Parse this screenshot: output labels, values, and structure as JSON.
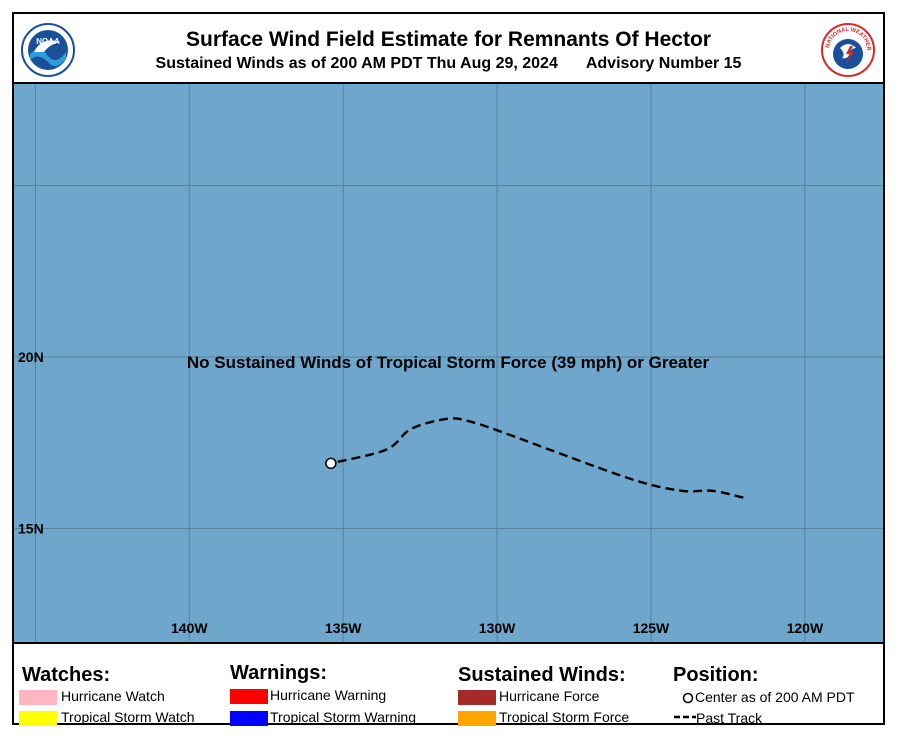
{
  "header": {
    "title": "Surface Wind Field Estimate for Remnants Of Hector",
    "subtitle": "Sustained Winds as of 200 AM PDT Thu Aug 29, 2024",
    "advisory": "Advisory Number 15",
    "noaa_logo_text": "NOAA",
    "nws_logo_text": "NATIONAL WEATHER SERVICE"
  },
  "map": {
    "ocean_color": "#6ea6cc",
    "lat_labels": [
      "20N",
      "15N"
    ],
    "lon_labels": [
      "140W",
      "135W",
      "130W",
      "125W",
      "120W"
    ],
    "message": "No Sustained Winds of Tropical Storm Force (39 mph) or Greater",
    "center": {
      "lat": 16.9,
      "lon": -135.4
    },
    "past_track": [
      {
        "lat": 15.9,
        "lon": -122.0
      },
      {
        "lat": 16.1,
        "lon": -123.0
      },
      {
        "lat": 16.1,
        "lon": -124.0
      },
      {
        "lat": 16.4,
        "lon": -125.5
      },
      {
        "lat": 17.2,
        "lon": -128.0
      },
      {
        "lat": 17.7,
        "lon": -129.5
      },
      {
        "lat": 18.1,
        "lon": -130.8
      },
      {
        "lat": 18.2,
        "lon": -131.6
      },
      {
        "lat": 17.9,
        "lon": -132.8
      },
      {
        "lat": 17.3,
        "lon": -133.6
      },
      {
        "lat": 16.9,
        "lon": -135.4
      }
    ]
  },
  "legend": {
    "watches": {
      "title": "Watches:",
      "items": [
        {
          "label": "Hurricane Watch",
          "color": "#ffb6c1"
        },
        {
          "label": "Tropical Storm Watch",
          "color": "#ffff00"
        }
      ]
    },
    "warnings": {
      "title": "Warnings:",
      "items": [
        {
          "label": "Hurricane Warning",
          "color": "#ff0000"
        },
        {
          "label": "Tropical Storm Warning",
          "color": "#0000ff"
        }
      ]
    },
    "winds": {
      "title": "Sustained Winds:",
      "items": [
        {
          "label": "Hurricane Force",
          "color": "#a52a2a"
        },
        {
          "label": "Tropical Storm Force",
          "color": "#ffa500"
        }
      ]
    },
    "position": {
      "title": "Position:",
      "center_label": "Center as of 200 AM PDT",
      "track_label": "Past Track"
    }
  }
}
